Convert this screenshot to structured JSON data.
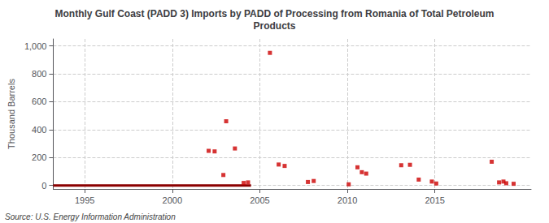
{
  "chart_data": {
    "type": "scatter",
    "title": "Monthly Gulf Coast (PADD 3) Imports by PADD of Processing from Romania of Total Petroleum\nProducts",
    "ylabel": "Thousand Barrels",
    "annotation": "Source: U.S. Energy Information Administration",
    "xlim": [
      1993.2,
      2020.5
    ],
    "ylim": [
      -25,
      1050
    ],
    "xticks": [
      1995,
      2000,
      2005,
      2010,
      2015
    ],
    "yticks": [
      0,
      200,
      400,
      600,
      800,
      {
        "value": 1000,
        "label": "1,000"
      }
    ],
    "grid": true,
    "series": [
      {
        "type": "line",
        "color": "#8b0000",
        "line_style": "solid",
        "x": [
          1993.2,
          2004.5
        ],
        "values": [
          0,
          0
        ]
      },
      {
        "type": "scatter",
        "color": "#cc0000",
        "marker": "square",
        "x": [
          2002.08,
          2002.42,
          2002.92,
          2003.08,
          2003.58,
          2004.08,
          2004.33,
          2005.58,
          2006.08,
          2006.42,
          2007.75,
          2008.08,
          2010.08,
          2010.58,
          2010.83,
          2011.08,
          2013.08,
          2013.58,
          2014.08,
          2014.83,
          2015.08,
          2018.25,
          2018.67,
          2018.92,
          2019.08,
          2019.5
        ],
        "values": [
          248,
          244,
          75,
          460,
          265,
          18,
          22,
          950,
          150,
          140,
          25,
          32,
          8,
          130,
          95,
          85,
          145,
          148,
          42,
          28,
          14,
          170,
          22,
          28,
          16,
          12
        ]
      }
    ]
  }
}
